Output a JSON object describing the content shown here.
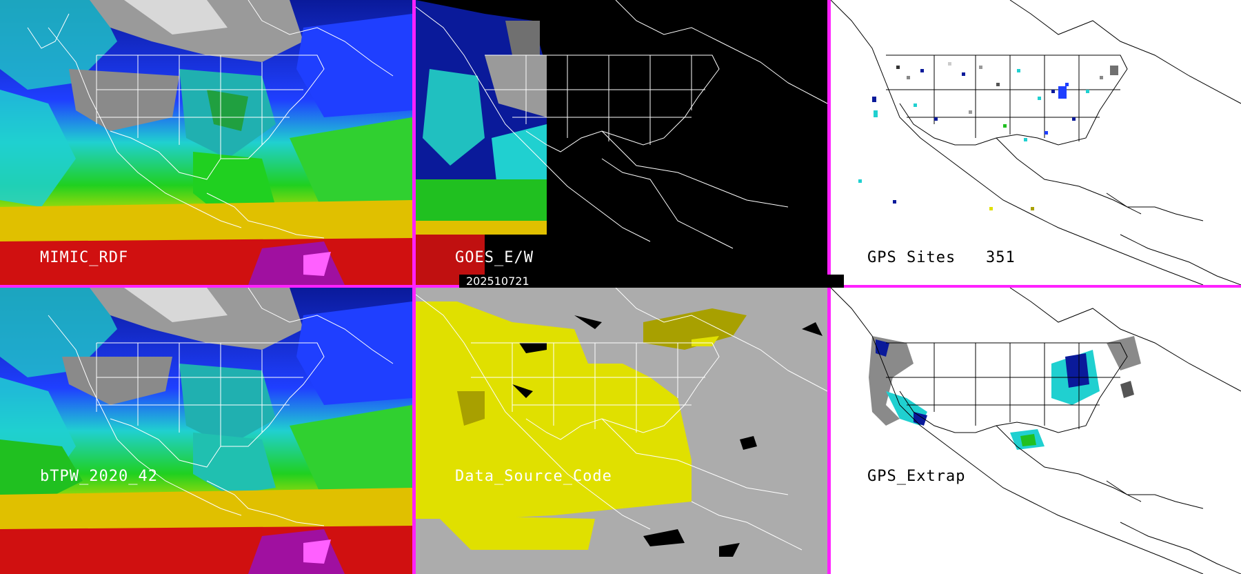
{
  "panels": {
    "mimic": {
      "label": "MIMIC_RDF"
    },
    "goes": {
      "label": "GOES_E/W"
    },
    "gps": {
      "label": "GPS Sites",
      "count": "351"
    },
    "btpw": {
      "label": "bTPW_2020_42"
    },
    "dsc": {
      "label": "Data_Source_Code"
    },
    "extrap": {
      "label": "GPS_Extrap"
    }
  },
  "timestamp": "202510721",
  "colors": {
    "divider": "#ff22ff",
    "tpw_scale": [
      "#ffffff",
      "#9a9a9a",
      "#0a1a9a",
      "#1f3fff",
      "#20d0d0",
      "#10c0a0",
      "#20d020",
      "#e0e000",
      "#e09000",
      "#e01010",
      "#a010a0",
      "#ff40ff"
    ],
    "dsc_yellow": "#e0e000",
    "dsc_olive": "#a8a000",
    "dsc_gray": "#acacac"
  }
}
